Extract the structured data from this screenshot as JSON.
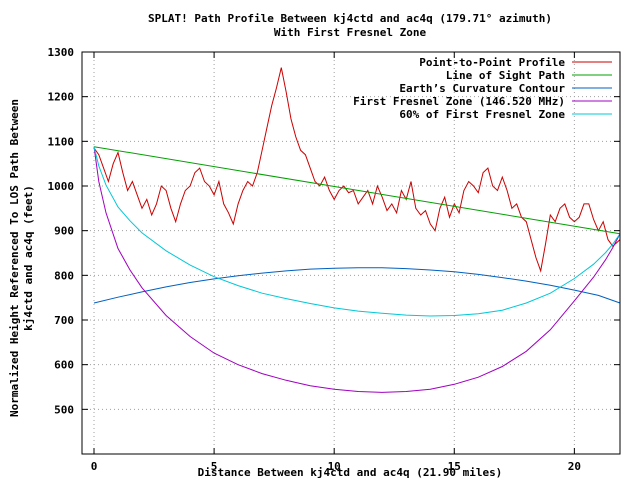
{
  "chart_data": {
    "type": "line",
    "title": "SPLAT! Path Profile Between kj4ctd and ac4q (179.71° azimuth)",
    "subtitle": "With First Fresnel Zone",
    "xlabel": "Distance Between kj4ctd and ac4q (21.90 miles)",
    "ylabel_line1": "Normalized Height Referenced To LOS Path Between",
    "ylabel_line2": "kj4ctd and ac4q (feet)",
    "xlim": [
      -0.5,
      21.9
    ],
    "ylim": [
      400,
      1300
    ],
    "x_ticks": [
      0,
      5,
      10,
      15,
      20
    ],
    "x_tick_labels": [
      "0",
      "5",
      "10",
      "15",
      "20"
    ],
    "y_ticks": [
      500,
      600,
      700,
      800,
      900,
      1000,
      1100,
      1200,
      1300
    ],
    "y_tick_labels": [
      "500",
      "600",
      "700",
      "800",
      "900",
      "1000",
      "1100",
      "1200",
      "1300"
    ],
    "grid": true,
    "legend_position": "top-right",
    "series": [
      {
        "name": "Point-to-Point Profile",
        "color": "#cc0000",
        "x": [
          0,
          0.2,
          0.4,
          0.6,
          0.8,
          1.0,
          1.2,
          1.4,
          1.6,
          1.8,
          2.0,
          2.2,
          2.4,
          2.6,
          2.8,
          3.0,
          3.2,
          3.4,
          3.6,
          3.8,
          4.0,
          4.2,
          4.4,
          4.6,
          4.8,
          5.0,
          5.2,
          5.4,
          5.6,
          5.8,
          6.0,
          6.2,
          6.4,
          6.6,
          6.8,
          7.0,
          7.2,
          7.4,
          7.6,
          7.8,
          8.0,
          8.2,
          8.4,
          8.6,
          8.8,
          9.0,
          9.2,
          9.4,
          9.6,
          9.8,
          10.0,
          10.2,
          10.4,
          10.6,
          10.8,
          11.0,
          11.2,
          11.4,
          11.6,
          11.8,
          12.0,
          12.2,
          12.4,
          12.6,
          12.8,
          13.0,
          13.2,
          13.4,
          13.6,
          13.8,
          14.0,
          14.2,
          14.4,
          14.6,
          14.8,
          15.0,
          15.2,
          15.4,
          15.6,
          15.8,
          16.0,
          16.2,
          16.4,
          16.6,
          16.8,
          17.0,
          17.2,
          17.4,
          17.6,
          17.8,
          18.0,
          18.2,
          18.4,
          18.6,
          18.8,
          19.0,
          19.2,
          19.4,
          19.6,
          19.8,
          20.0,
          20.2,
          20.4,
          20.6,
          20.8,
          21.0,
          21.2,
          21.4,
          21.6,
          21.9
        ],
        "y": [
          1085,
          1070,
          1040,
          1010,
          1050,
          1075,
          1030,
          990,
          1010,
          980,
          950,
          970,
          935,
          960,
          1000,
          990,
          950,
          920,
          960,
          990,
          1000,
          1030,
          1040,
          1010,
          1000,
          980,
          1010,
          960,
          940,
          915,
          960,
          990,
          1010,
          1000,
          1030,
          1080,
          1130,
          1180,
          1220,
          1265,
          1210,
          1150,
          1110,
          1080,
          1070,
          1040,
          1010,
          1000,
          1020,
          990,
          970,
          990,
          1000,
          985,
          990,
          960,
          975,
          990,
          960,
          1000,
          975,
          945,
          960,
          940,
          990,
          970,
          1010,
          950,
          935,
          945,
          915,
          900,
          950,
          975,
          930,
          960,
          940,
          990,
          1010,
          1000,
          985,
          1030,
          1040,
          1000,
          990,
          1020,
          990,
          950,
          960,
          930,
          920,
          880,
          840,
          810,
          870,
          935,
          920,
          950,
          960,
          930,
          920,
          930,
          960,
          960,
          925,
          900,
          920,
          880,
          865,
          880
        ]
      },
      {
        "name": "Line of Sight Path",
        "color": "#00a000",
        "x": [
          0,
          21.9
        ],
        "y": [
          1088,
          893
        ]
      },
      {
        "name": "Earth’s Curvature Contour",
        "color": "#0060c0",
        "x": [
          0,
          1,
          2,
          3,
          4,
          5,
          6,
          7,
          8,
          9,
          10,
          11,
          12,
          13,
          14,
          15,
          16,
          17,
          18,
          19,
          20,
          21,
          21.9
        ],
        "y": [
          738,
          751,
          763,
          774,
          784,
          792,
          799,
          805,
          810,
          814,
          816,
          817,
          817,
          815,
          812,
          808,
          802,
          795,
          787,
          778,
          767,
          755,
          738
        ]
      },
      {
        "name": "First Fresnel Zone (146.520 MHz)",
        "color": "#a000c0",
        "x": [
          0,
          0.2,
          0.5,
          1,
          1.5,
          2,
          3,
          4,
          5,
          6,
          7,
          8,
          9,
          10,
          11,
          12,
          13,
          14,
          15,
          16,
          17,
          18,
          19,
          20,
          20.8,
          21.3,
          21.6,
          21.9
        ],
        "y": [
          1088,
          1010,
          940,
          860,
          812,
          772,
          710,
          663,
          626,
          600,
          580,
          565,
          553,
          545,
          540,
          538,
          540,
          545,
          556,
          572,
          596,
          630,
          678,
          743,
          796,
          835,
          862,
          893
        ]
      },
      {
        "name": "60% of First Fresnel Zone",
        "color": "#00c8d8",
        "x": [
          0,
          0.2,
          0.5,
          1,
          1.5,
          2,
          3,
          4,
          5,
          6,
          7,
          8,
          9,
          10,
          11,
          12,
          13,
          14,
          15,
          16,
          17,
          18,
          19,
          20,
          20.8,
          21.3,
          21.6,
          21.9
        ],
        "y": [
          1088,
          1045,
          1002,
          953,
          922,
          895,
          855,
          823,
          797,
          777,
          760,
          748,
          737,
          727,
          720,
          715,
          711,
          709,
          710,
          714,
          722,
          738,
          760,
          793,
          825,
          851,
          870,
          893
        ]
      }
    ]
  }
}
